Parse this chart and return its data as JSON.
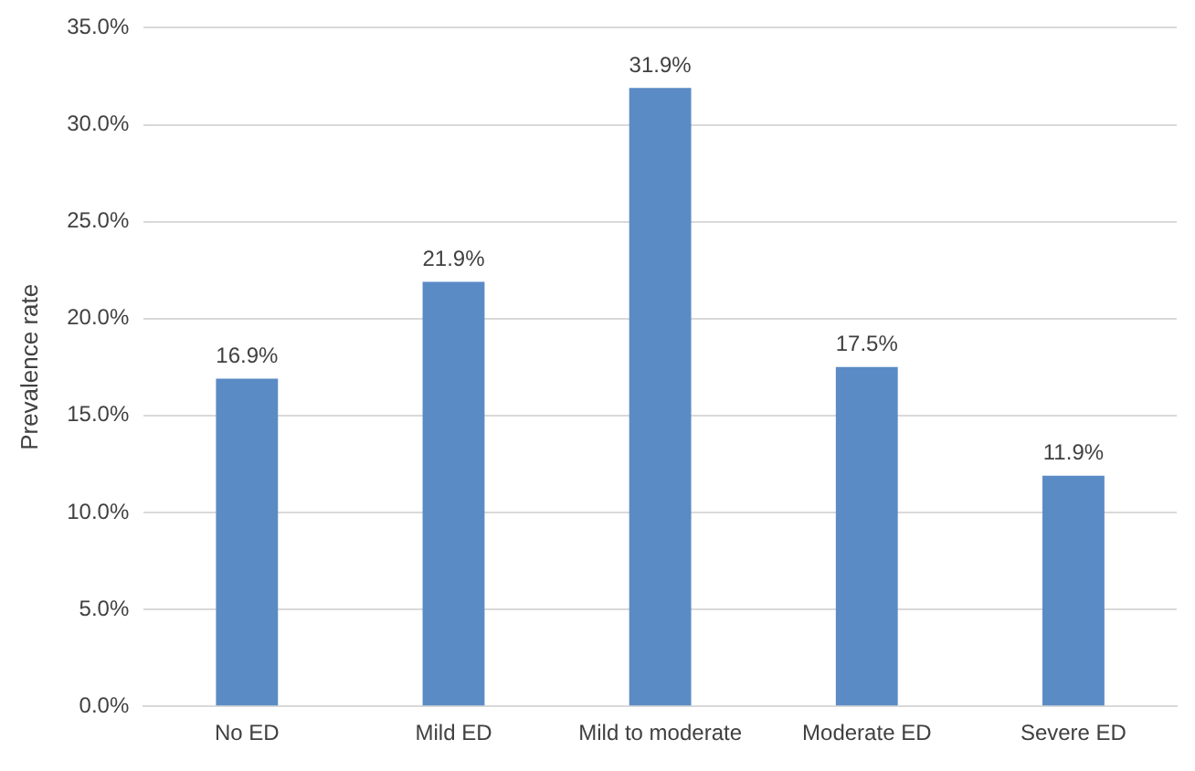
{
  "chart_data": {
    "type": "bar",
    "ylabel": "Prevalence rate",
    "categories": [
      "No ED",
      "Mild ED",
      "Mild to moderate",
      "Moderate ED",
      "Severe ED"
    ],
    "values": [
      16.9,
      21.9,
      31.9,
      17.5,
      11.9
    ],
    "value_labels": [
      "16.9%",
      "21.9%",
      "31.9%",
      "17.5%",
      "11.9%"
    ],
    "color": "#5b8bc5",
    "ylim": [
      0,
      35
    ],
    "yticks": [
      {
        "value": 0,
        "label": "0.0%"
      },
      {
        "value": 5,
        "label": "5.0%"
      },
      {
        "value": 10,
        "label": "10.0%"
      },
      {
        "value": 15,
        "label": "15.0%"
      },
      {
        "value": 20,
        "label": "20.0%"
      },
      {
        "value": 25,
        "label": "25.0%"
      },
      {
        "value": 30,
        "label": "30.0%"
      },
      {
        "value": 35,
        "label": "35.0%"
      }
    ],
    "grid": "y",
    "legend": false
  }
}
